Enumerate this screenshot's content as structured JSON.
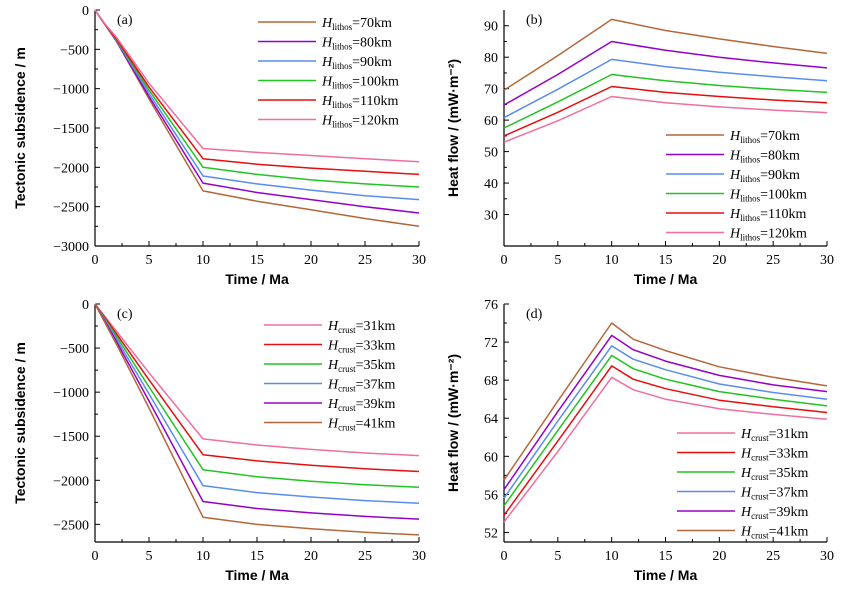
{
  "chart_data": [
    {
      "type": "line",
      "panel_label": "(a)",
      "xlabel": "Time / Ma",
      "ylabel": "Tectonic subsidence / m",
      "xlim": [
        0,
        30
      ],
      "ylim": [
        -3000,
        0
      ],
      "xticks": [
        0,
        5,
        10,
        15,
        20,
        25,
        30
      ],
      "yticks": [
        0,
        -500,
        -1000,
        -1500,
        -2000,
        -2500,
        -3000
      ],
      "ytick_labels": [
        "0",
        "−500",
        "−1000",
        "−1500",
        "−2000",
        "−2500",
        "−3000"
      ],
      "legend_position": "top-right",
      "series": [
        {
          "var": "H",
          "sub": "lithos",
          "value": "=70km",
          "color": "#b5673a",
          "x": [
            0,
            1,
            2,
            5,
            10,
            15,
            20,
            25,
            30
          ],
          "y": [
            0,
            -200,
            -400,
            -1130,
            -2300,
            -2430,
            -2540,
            -2650,
            -2750
          ]
        },
        {
          "var": "H",
          "sub": "lithos",
          "value": "=80km",
          "color": "#9600c8",
          "x": [
            0,
            1,
            2,
            5,
            10,
            15,
            20,
            25,
            30
          ],
          "y": [
            0,
            -200,
            -400,
            -1100,
            -2200,
            -2320,
            -2410,
            -2500,
            -2580
          ]
        },
        {
          "var": "H",
          "sub": "lithos",
          "value": "=90km",
          "color": "#5a8cf0",
          "x": [
            0,
            1,
            2,
            5,
            10,
            15,
            20,
            25,
            30
          ],
          "y": [
            0,
            -200,
            -390,
            -1060,
            -2110,
            -2210,
            -2290,
            -2360,
            -2410
          ]
        },
        {
          "var": "H",
          "sub": "lithos",
          "value": "=100km",
          "color": "#22c322",
          "x": [
            0,
            1,
            2,
            5,
            10,
            15,
            20,
            25,
            30
          ],
          "y": [
            0,
            -200,
            -380,
            -1020,
            -2000,
            -2090,
            -2160,
            -2210,
            -2250
          ]
        },
        {
          "var": "H",
          "sub": "lithos",
          "value": "=110km",
          "color": "#e60e0e",
          "x": [
            0,
            1,
            2,
            5,
            10,
            15,
            20,
            25,
            30
          ],
          "y": [
            0,
            -200,
            -370,
            -980,
            -1890,
            -1960,
            -2010,
            -2050,
            -2090
          ]
        },
        {
          "var": "H",
          "sub": "lithos",
          "value": "=120km",
          "color": "#f06ea0",
          "x": [
            0,
            1,
            2,
            5,
            10,
            15,
            20,
            25,
            30
          ],
          "y": [
            0,
            -190,
            -350,
            -930,
            -1760,
            -1810,
            -1850,
            -1890,
            -1930
          ]
        }
      ]
    },
    {
      "type": "line",
      "panel_label": "(b)",
      "xlabel": "Time / Ma",
      "ylabel": "Heat flow / (mW·m⁻²)",
      "xlim": [
        0,
        30
      ],
      "ylim": [
        20,
        95
      ],
      "xticks": [
        0,
        5,
        10,
        15,
        20,
        25,
        30
      ],
      "yticks": [
        30,
        40,
        50,
        60,
        70,
        80,
        90
      ],
      "ytick_labels": [
        "30",
        "40",
        "50",
        "60",
        "70",
        "80",
        "90"
      ],
      "legend_position": "bottom-right",
      "series": [
        {
          "var": "H",
          "sub": "lithos",
          "value": "=70km",
          "color": "#b5673a",
          "x": [
            0,
            5,
            10,
            15,
            20,
            25,
            30
          ],
          "y": [
            69.5,
            80.5,
            92,
            88.5,
            85.8,
            83.4,
            81.2
          ]
        },
        {
          "var": "H",
          "sub": "lithos",
          "value": "=80km",
          "color": "#9600c8",
          "x": [
            0,
            5,
            10,
            15,
            20,
            25,
            30
          ],
          "y": [
            64.8,
            74.5,
            85,
            82.2,
            80,
            78.2,
            76.6
          ]
        },
        {
          "var": "H",
          "sub": "lithos",
          "value": "=90km",
          "color": "#5a8cf0",
          "x": [
            0,
            5,
            10,
            15,
            20,
            25,
            30
          ],
          "y": [
            60.8,
            69.8,
            79.3,
            77,
            75.2,
            73.8,
            72.5
          ]
        },
        {
          "var": "H",
          "sub": "lithos",
          "value": "=100km",
          "color": "#22c322",
          "x": [
            0,
            5,
            10,
            15,
            20,
            25,
            30
          ],
          "y": [
            57.5,
            65.8,
            74.5,
            72.5,
            71,
            69.8,
            68.8
          ]
        },
        {
          "var": "H",
          "sub": "lithos",
          "value": "=110km",
          "color": "#e60e0e",
          "x": [
            0,
            5,
            10,
            15,
            20,
            25,
            30
          ],
          "y": [
            55,
            62.5,
            70.7,
            68.8,
            67.5,
            66.4,
            65.5
          ]
        },
        {
          "var": "H",
          "sub": "lithos",
          "value": "=120km",
          "color": "#f06ea0",
          "x": [
            0,
            5,
            10,
            15,
            20,
            25,
            30
          ],
          "y": [
            53,
            59.8,
            67.5,
            65.5,
            64.2,
            63.2,
            62.4
          ]
        }
      ]
    },
    {
      "type": "line",
      "panel_label": "(c)",
      "xlabel": "Time / Ma",
      "ylabel": "Tectonic subsidence / m",
      "xlim": [
        0,
        30
      ],
      "ylim": [
        -2700,
        0
      ],
      "xticks": [
        0,
        5,
        10,
        15,
        20,
        25,
        30
      ],
      "yticks": [
        0,
        -500,
        -1000,
        -1500,
        -2000,
        -2500
      ],
      "ytick_labels": [
        "0",
        "−500",
        "−1000",
        "−1500",
        "−2000",
        "−2500"
      ],
      "legend_position": "top-right",
      "series": [
        {
          "var": "H",
          "sub": "crust",
          "value": "=31km",
          "color": "#f06ea0",
          "x": [
            0,
            2,
            5,
            10,
            15,
            20,
            25,
            30
          ],
          "y": [
            0,
            -310,
            -780,
            -1530,
            -1600,
            -1650,
            -1690,
            -1720
          ]
        },
        {
          "var": "H",
          "sub": "crust",
          "value": "=33km",
          "color": "#e60e0e",
          "x": [
            0,
            2,
            5,
            10,
            15,
            20,
            25,
            30
          ],
          "y": [
            0,
            -340,
            -860,
            -1710,
            -1780,
            -1830,
            -1870,
            -1900
          ]
        },
        {
          "var": "H",
          "sub": "crust",
          "value": "=35km",
          "color": "#22c322",
          "x": [
            0,
            2,
            5,
            10,
            15,
            20,
            25,
            30
          ],
          "y": [
            0,
            -370,
            -940,
            -1880,
            -1960,
            -2010,
            -2050,
            -2080
          ]
        },
        {
          "var": "H",
          "sub": "crust",
          "value": "=37km",
          "color": "#5a8cf0",
          "x": [
            0,
            2,
            5,
            10,
            15,
            20,
            25,
            30
          ],
          "y": [
            0,
            -400,
            -1020,
            -2060,
            -2140,
            -2190,
            -2230,
            -2260
          ]
        },
        {
          "var": "H",
          "sub": "crust",
          "value": "=39km",
          "color": "#9600c8",
          "x": [
            0,
            2,
            5,
            10,
            15,
            20,
            25,
            30
          ],
          "y": [
            0,
            -430,
            -1100,
            -2240,
            -2320,
            -2370,
            -2410,
            -2440
          ]
        },
        {
          "var": "H",
          "sub": "crust",
          "value": "=41km",
          "color": "#b5673a",
          "x": [
            0,
            2,
            5,
            10,
            15,
            20,
            25,
            30
          ],
          "y": [
            0,
            -460,
            -1180,
            -2420,
            -2500,
            -2550,
            -2590,
            -2620
          ]
        }
      ]
    },
    {
      "type": "line",
      "panel_label": "(d)",
      "xlabel": "Time / Ma",
      "ylabel": "Heat flow / (mW·m⁻²)",
      "xlim": [
        0,
        30
      ],
      "ylim": [
        51,
        76
      ],
      "xticks": [
        0,
        5,
        10,
        15,
        20,
        25,
        30
      ],
      "yticks": [
        52,
        56,
        60,
        64,
        68,
        72,
        76
      ],
      "ytick_labels": [
        "52",
        "56",
        "60",
        "64",
        "68",
        "72",
        "76"
      ],
      "legend_position": "bottom-right",
      "series": [
        {
          "var": "H",
          "sub": "crust",
          "value": "=31km",
          "color": "#f06ea0",
          "x": [
            0,
            5,
            10,
            12,
            15,
            20,
            25,
            30
          ],
          "y": [
            53.1,
            60.5,
            68.3,
            67,
            66,
            65,
            64.4,
            63.9
          ]
        },
        {
          "var": "H",
          "sub": "crust",
          "value": "=33km",
          "color": "#e60e0e",
          "x": [
            0,
            5,
            10,
            12,
            15,
            20,
            25,
            30
          ],
          "y": [
            53.8,
            61.6,
            69.5,
            68.1,
            67.1,
            65.9,
            65.2,
            64.6
          ]
        },
        {
          "var": "H",
          "sub": "crust",
          "value": "=35km",
          "color": "#22c322",
          "x": [
            0,
            5,
            10,
            12,
            15,
            20,
            25,
            30
          ],
          "y": [
            54.8,
            62.7,
            70.6,
            69.2,
            68.1,
            66.8,
            66,
            65.3
          ]
        },
        {
          "var": "H",
          "sub": "crust",
          "value": "=37km",
          "color": "#5a8cf0",
          "x": [
            0,
            5,
            10,
            12,
            15,
            20,
            25,
            30
          ],
          "y": [
            55.6,
            63.7,
            71.6,
            70.2,
            69.1,
            67.6,
            66.7,
            66
          ]
        },
        {
          "var": "H",
          "sub": "crust",
          "value": "=39km",
          "color": "#9600c8",
          "x": [
            0,
            5,
            10,
            12,
            15,
            20,
            25,
            30
          ],
          "y": [
            56.5,
            64.7,
            72.7,
            71.2,
            70,
            68.5,
            67.5,
            66.8
          ]
        },
        {
          "var": "H",
          "sub": "crust",
          "value": "=41km",
          "color": "#b5673a",
          "x": [
            0,
            5,
            10,
            12,
            15,
            20,
            25,
            30
          ],
          "y": [
            57.5,
            65.8,
            74,
            72.3,
            71.1,
            69.4,
            68.3,
            67.4
          ]
        }
      ]
    }
  ]
}
